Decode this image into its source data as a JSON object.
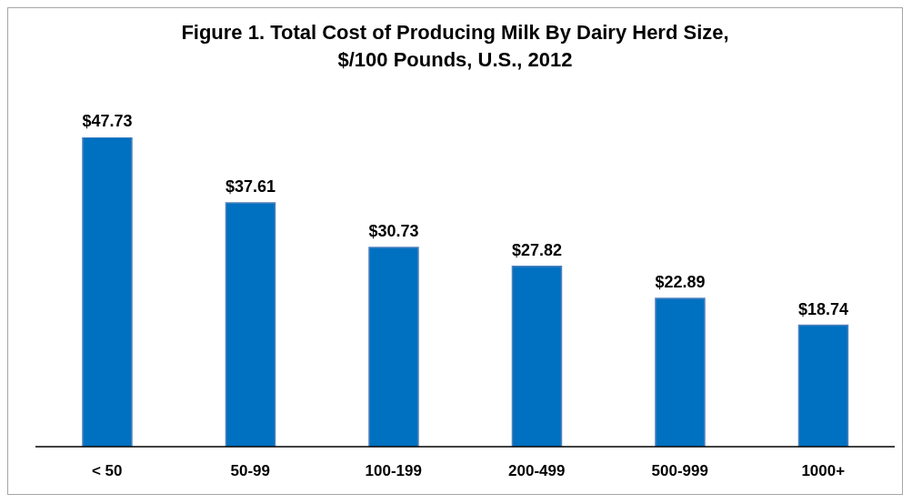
{
  "chart_data": {
    "type": "bar",
    "title": "Figure 1. Total Cost of Producing Milk By Dairy Herd Size, $/100 Pounds, U.S., 2012",
    "categories": [
      "< 50",
      "50-99",
      "100-199",
      "200-499",
      "500-999",
      "1000+"
    ],
    "values": [
      47.73,
      37.61,
      30.73,
      27.82,
      22.89,
      18.74
    ],
    "value_labels": [
      "$47.73",
      "$37.61",
      "$30.73",
      "$27.82",
      "$22.89",
      "$18.74"
    ],
    "color": "#0070c0"
  }
}
